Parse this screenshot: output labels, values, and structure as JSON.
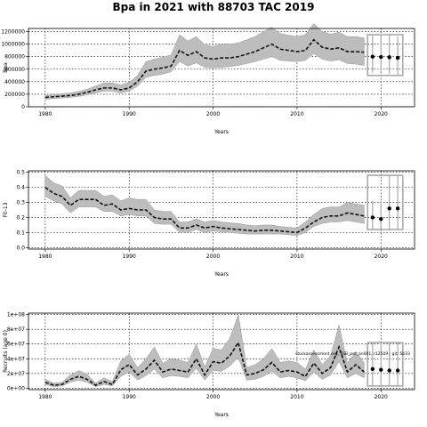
{
  "figure": {
    "title": "Bpa in 2021 with 88703 TAC 2019"
  },
  "chart_data": [
    {
      "type": "area",
      "name": "biomass",
      "xlabel": "Years",
      "ylabel": "Bpa",
      "xlim": [
        1978,
        2024
      ],
      "ylim": [
        0,
        1250000
      ],
      "xticks": [
        1980,
        1990,
        2000,
        2010,
        2020
      ],
      "yticks": [
        0,
        200000,
        400000,
        600000,
        800000,
        1000000,
        1200000
      ],
      "ytick_labels": [
        "0",
        "200000",
        "400000",
        "600000",
        "800000",
        "1000000",
        "1200000"
      ],
      "grid": true,
      "x": [
        1980,
        1981,
        1982,
        1983,
        1984,
        1985,
        1986,
        1987,
        1988,
        1989,
        1990,
        1991,
        1992,
        1993,
        1994,
        1995,
        1996,
        1997,
        1998,
        1999,
        2000,
        2001,
        2002,
        2003,
        2004,
        2005,
        2006,
        2007,
        2008,
        2009,
        2010,
        2011,
        2012,
        2013,
        2014,
        2015,
        2016,
        2017,
        2018
      ],
      "median": [
        150000,
        160000,
        170000,
        180000,
        200000,
        230000,
        270000,
        300000,
        300000,
        270000,
        300000,
        400000,
        570000,
        600000,
        620000,
        650000,
        900000,
        820000,
        880000,
        780000,
        760000,
        780000,
        780000,
        800000,
        840000,
        880000,
        940000,
        1000000,
        920000,
        900000,
        880000,
        900000,
        1070000,
        950000,
        920000,
        940000,
        880000,
        880000,
        870000
      ],
      "lower": [
        120000,
        130000,
        140000,
        150000,
        165000,
        190000,
        220000,
        250000,
        250000,
        220000,
        250000,
        330000,
        470000,
        500000,
        520000,
        560000,
        720000,
        650000,
        700000,
        630000,
        620000,
        630000,
        640000,
        660000,
        690000,
        720000,
        760000,
        800000,
        740000,
        730000,
        720000,
        740000,
        850000,
        760000,
        730000,
        750000,
        690000,
        680000,
        660000
      ],
      "upper": [
        180000,
        190000,
        210000,
        220000,
        245000,
        280000,
        330000,
        380000,
        380000,
        350000,
        390000,
        500000,
        720000,
        760000,
        790000,
        830000,
        1150000,
        1050000,
        1120000,
        990000,
        960000,
        1000000,
        1000000,
        1020000,
        1070000,
        1120000,
        1200000,
        1270000,
        1170000,
        1140000,
        1120000,
        1150000,
        1330000,
        1200000,
        1160000,
        1190000,
        1120000,
        1120000,
        1100000
      ],
      "projection": {
        "years": [
          2019,
          2020,
          2021,
          2022
        ],
        "median": [
          800000,
          795000,
          790000,
          780000
        ],
        "lower": [
          550000,
          545000,
          520000,
          500000
        ],
        "upper": [
          1150000,
          1150000,
          1140000,
          1120000
        ]
      }
    },
    {
      "type": "area",
      "name": "fishing-mortality",
      "xlabel": "Years",
      "ylabel": "F0-13",
      "xlim": [
        1978,
        2024
      ],
      "ylim": [
        -0.01,
        0.51
      ],
      "xticks": [
        1980,
        1990,
        2000,
        2010,
        2020
      ],
      "yticks": [
        0,
        0.1,
        0.2,
        0.3,
        0.4,
        0.5
      ],
      "ytick_labels": [
        "0.0",
        "0.1",
        "0.2",
        "0.3",
        "0.4",
        "0.5"
      ],
      "grid": true,
      "x": [
        1980,
        1981,
        1982,
        1983,
        1984,
        1985,
        1986,
        1987,
        1988,
        1989,
        1990,
        1991,
        1992,
        1993,
        1994,
        1995,
        1996,
        1997,
        1998,
        1999,
        2000,
        2001,
        2002,
        2003,
        2004,
        2005,
        2006,
        2007,
        2008,
        2009,
        2010,
        2011,
        2012,
        2013,
        2014,
        2015,
        2016,
        2017,
        2018
      ],
      "median": [
        0.4,
        0.36,
        0.34,
        0.28,
        0.32,
        0.32,
        0.32,
        0.28,
        0.29,
        0.25,
        0.26,
        0.25,
        0.25,
        0.2,
        0.19,
        0.19,
        0.13,
        0.13,
        0.15,
        0.13,
        0.14,
        0.13,
        0.125,
        0.12,
        0.115,
        0.11,
        0.115,
        0.115,
        0.11,
        0.105,
        0.1,
        0.13,
        0.17,
        0.2,
        0.21,
        0.21,
        0.23,
        0.22,
        0.21
      ],
      "lower": [
        0.34,
        0.31,
        0.29,
        0.23,
        0.27,
        0.27,
        0.27,
        0.24,
        0.24,
        0.21,
        0.22,
        0.21,
        0.21,
        0.16,
        0.155,
        0.155,
        0.1,
        0.1,
        0.12,
        0.1,
        0.11,
        0.105,
        0.1,
        0.095,
        0.09,
        0.09,
        0.09,
        0.09,
        0.09,
        0.085,
        0.08,
        0.1,
        0.14,
        0.16,
        0.17,
        0.17,
        0.18,
        0.17,
        0.16
      ],
      "upper": [
        0.48,
        0.43,
        0.41,
        0.33,
        0.38,
        0.38,
        0.38,
        0.34,
        0.35,
        0.31,
        0.33,
        0.32,
        0.32,
        0.25,
        0.24,
        0.24,
        0.17,
        0.17,
        0.19,
        0.17,
        0.18,
        0.17,
        0.165,
        0.16,
        0.15,
        0.145,
        0.15,
        0.15,
        0.14,
        0.135,
        0.13,
        0.17,
        0.22,
        0.26,
        0.27,
        0.27,
        0.3,
        0.29,
        0.28
      ],
      "projection": {
        "years": [
          2019,
          2020,
          2021,
          2022
        ],
        "median": [
          0.2,
          0.19,
          0.26,
          0.26
        ],
        "lower": [
          0.12,
          0.12,
          0.12,
          0.12
        ],
        "upper": [
          0.31,
          0.31,
          0.48,
          0.48
        ]
      }
    },
    {
      "type": "area",
      "name": "recruitment",
      "xlabel": "Years",
      "ylabel": "Recruits (age 0)",
      "xlim": [
        1978,
        2024
      ],
      "ylim": [
        -2000000,
        102000000
      ],
      "xticks": [
        1980,
        1990,
        2000,
        2010,
        2020
      ],
      "yticks": [
        0,
        20000000,
        40000000,
        60000000,
        80000000,
        100000000
      ],
      "ytick_labels": [
        "0e+00",
        "2e+07",
        "4e+07",
        "6e+07",
        "8e+07",
        "1e+08"
      ],
      "grid": true,
      "annotation": "stockassessment.org, SSB_per_an001, r12509 ; git: 5b33",
      "x": [
        1980,
        1981,
        1982,
        1983,
        1984,
        1985,
        1986,
        1987,
        1988,
        1989,
        1990,
        1991,
        1992,
        1993,
        1994,
        1995,
        1996,
        1997,
        1998,
        1999,
        2000,
        2001,
        2002,
        2003,
        2004,
        2005,
        2006,
        2007,
        2008,
        2009,
        2010,
        2011,
        2012,
        2013,
        2014,
        2015,
        2016,
        2017,
        2018
      ],
      "median": [
        8000000,
        4000000,
        5000000,
        12000000,
        16000000,
        12000000,
        4000000,
        9000000,
        5000000,
        25000000,
        32000000,
        18000000,
        26000000,
        38000000,
        22000000,
        26000000,
        24000000,
        22000000,
        40000000,
        18000000,
        36000000,
        34000000,
        44000000,
        62000000,
        18000000,
        20000000,
        25000000,
        35000000,
        22000000,
        24000000,
        22000000,
        16000000,
        34000000,
        20000000,
        28000000,
        56000000,
        22000000,
        32000000,
        22000000
      ],
      "lower": [
        5000000,
        2000000,
        3000000,
        8000000,
        11000000,
        8000000,
        2000000,
        5000000,
        3000000,
        16000000,
        22000000,
        11000000,
        17000000,
        26000000,
        14000000,
        17000000,
        16000000,
        14000000,
        27000000,
        11000000,
        24000000,
        23000000,
        30000000,
        42000000,
        11000000,
        12000000,
        16000000,
        23000000,
        14000000,
        16000000,
        14000000,
        10000000,
        22000000,
        12000000,
        18000000,
        36000000,
        14000000,
        20000000,
        14000000
      ],
      "upper": [
        12000000,
        7000000,
        8000000,
        18000000,
        24000000,
        19000000,
        7000000,
        14000000,
        9000000,
        37000000,
        46000000,
        28000000,
        40000000,
        56000000,
        34000000,
        40000000,
        38000000,
        35000000,
        60000000,
        29000000,
        54000000,
        52000000,
        68000000,
        100000000,
        28000000,
        32000000,
        40000000,
        54000000,
        35000000,
        37000000,
        35000000,
        26000000,
        52000000,
        32000000,
        44000000,
        86000000,
        34000000,
        50000000,
        34000000
      ],
      "projection": {
        "years": [
          2019,
          2020,
          2021,
          2022
        ],
        "median": [
          26000000,
          25000000,
          24000000,
          24000000
        ],
        "lower": [
          3000000,
          3000000,
          3000000,
          3000000
        ],
        "upper": [
          62000000,
          62000000,
          62000000,
          62000000
        ]
      }
    }
  ]
}
